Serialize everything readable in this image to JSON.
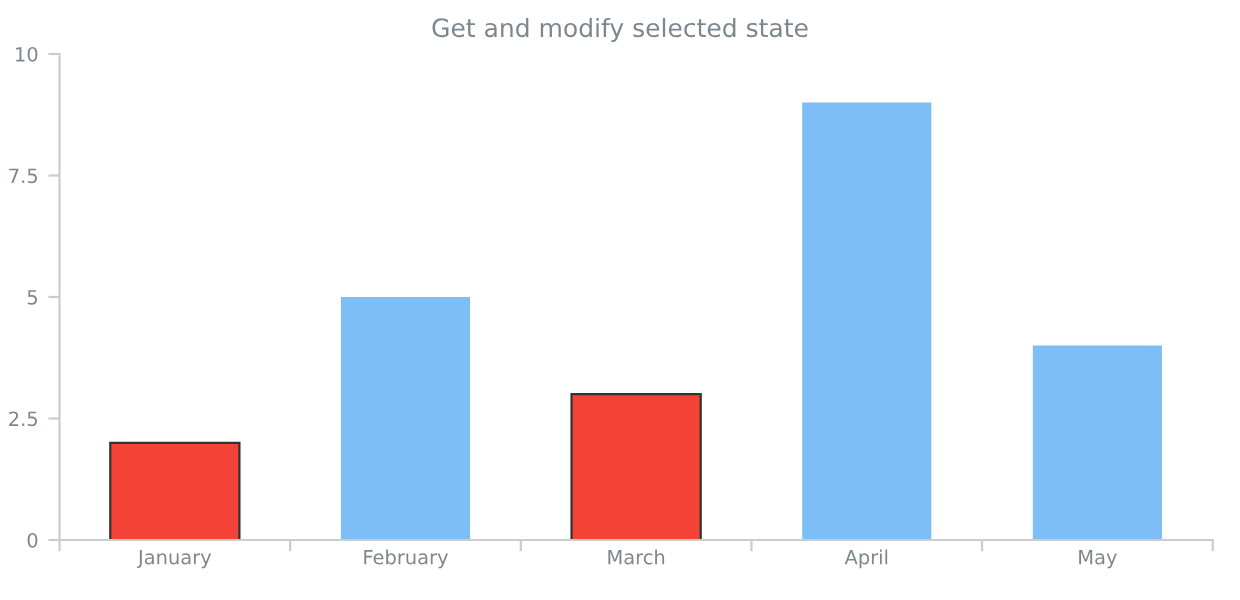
{
  "chart_data": {
    "type": "bar",
    "title": "Get and modify selected state",
    "categories": [
      "January",
      "February",
      "March",
      "April",
      "May"
    ],
    "values": [
      2,
      5,
      3,
      9,
      4
    ],
    "colors": [
      "#f44336",
      "#7dbef6",
      "#f44336",
      "#7dbef6",
      "#7dbef6"
    ],
    "ylim": [
      0,
      10
    ],
    "yticks": [
      0,
      2.5,
      5,
      7.5,
      10
    ],
    "grid": false,
    "legend": false
  }
}
